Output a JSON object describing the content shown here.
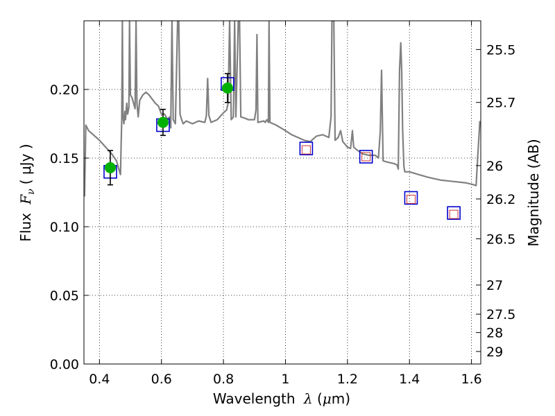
{
  "chart_data": {
    "type": "scatter",
    "xlabel_prefix": "Wavelength",
    "xlabel_symbol": "λ",
    "xlabel_unit_open": " (",
    "xlabel_unit_mu": "μ",
    "xlabel_unit_close": "m)",
    "ylabel_prefix": "Flux",
    "ylabel_symbol": "F",
    "ylabel_sub": "ν",
    "ylabel_unit": "( μJy )",
    "y2label": "Magnitude (AB)",
    "xlim": [
      0.35,
      1.63
    ],
    "ylim": [
      0.0,
      0.25
    ],
    "grid": true,
    "x_ticks": [
      0.4,
      0.6,
      0.8,
      1.0,
      1.2,
      1.4,
      1.6
    ],
    "x_tick_labels": [
      "0.4",
      "0.6",
      "0.8",
      "1",
      "1.2",
      "1.4",
      "1.6"
    ],
    "y_ticks": [
      0.0,
      0.05,
      0.1,
      0.15,
      0.2
    ],
    "y_tick_labels": [
      "0.00",
      "0.05",
      "0.10",
      "0.15",
      "0.20"
    ],
    "mag_ticks": [
      {
        "mag": 25.5,
        "label": "25.5"
      },
      {
        "mag": 25.7,
        "label": "25.7"
      },
      {
        "mag": 26.0,
        "label": "26"
      },
      {
        "mag": 26.2,
        "label": "26.2"
      },
      {
        "mag": 26.5,
        "label": "26.5"
      },
      {
        "mag": 27.0,
        "label": "27"
      },
      {
        "mag": 27.5,
        "label": "27.5"
      },
      {
        "mag": 28.0,
        "label": "28"
      },
      {
        "mag": 29.0,
        "label": "29"
      }
    ],
    "colors": {
      "sed": "#808080",
      "observed": "#00b000",
      "model": "#0000cc",
      "predicted": "#cc3333",
      "errorbar": "#000000"
    },
    "series": [
      {
        "kind": "line",
        "points": [
          [
            0.352,
            0.122
          ],
          [
            0.356,
            0.174
          ],
          [
            0.365,
            0.17
          ],
          [
            0.38,
            0.167
          ],
          [
            0.4,
            0.163
          ],
          [
            0.42,
            0.158
          ],
          [
            0.44,
            0.153
          ],
          [
            0.455,
            0.148
          ],
          [
            0.465,
            0.14
          ],
          [
            0.468,
            0.138
          ],
          [
            0.47,
            0.16
          ],
          [
            0.472,
            0.178
          ],
          [
            0.474,
            0.25
          ],
          [
            0.476,
            0.18
          ],
          [
            0.479,
            0.175
          ],
          [
            0.482,
            0.184
          ],
          [
            0.484,
            0.178
          ],
          [
            0.488,
            0.19
          ],
          [
            0.491,
            0.182
          ],
          [
            0.495,
            0.187
          ],
          [
            0.497,
            0.25
          ],
          [
            0.5,
            0.196
          ],
          [
            0.505,
            0.194
          ],
          [
            0.51,
            0.19
          ],
          [
            0.515,
            0.186
          ],
          [
            0.518,
            0.25
          ],
          [
            0.521,
            0.19
          ],
          [
            0.525,
            0.18
          ],
          [
            0.53,
            0.192
          ],
          [
            0.54,
            0.196
          ],
          [
            0.55,
            0.198
          ],
          [
            0.56,
            0.196
          ],
          [
            0.58,
            0.19
          ],
          [
            0.59,
            0.188
          ],
          [
            0.6,
            0.182
          ],
          [
            0.61,
            0.182
          ],
          [
            0.62,
            0.178
          ],
          [
            0.626,
            0.18
          ],
          [
            0.63,
            0.172
          ],
          [
            0.634,
            0.25
          ],
          [
            0.638,
            0.178
          ],
          [
            0.645,
            0.175
          ],
          [
            0.652,
            0.25
          ],
          [
            0.656,
            0.25
          ],
          [
            0.66,
            0.182
          ],
          [
            0.665,
            0.178
          ],
          [
            0.67,
            0.175
          ],
          [
            0.68,
            0.177
          ],
          [
            0.7,
            0.175
          ],
          [
            0.72,
            0.177
          ],
          [
            0.74,
            0.176
          ],
          [
            0.745,
            0.181
          ],
          [
            0.749,
            0.208
          ],
          [
            0.753,
            0.181
          ],
          [
            0.76,
            0.176
          ],
          [
            0.78,
            0.178
          ],
          [
            0.8,
            0.183
          ],
          [
            0.81,
            0.185
          ],
          [
            0.815,
            0.19
          ],
          [
            0.82,
            0.25
          ],
          [
            0.825,
            0.178
          ],
          [
            0.832,
            0.18
          ],
          [
            0.836,
            0.25
          ],
          [
            0.84,
            0.18
          ],
          [
            0.848,
            0.25
          ],
          [
            0.852,
            0.25
          ],
          [
            0.856,
            0.18
          ],
          [
            0.87,
            0.179
          ],
          [
            0.88,
            0.178
          ],
          [
            0.9,
            0.178
          ],
          [
            0.905,
            0.185
          ],
          [
            0.908,
            0.24
          ],
          [
            0.911,
            0.176
          ],
          [
            0.93,
            0.177
          ],
          [
            0.935,
            0.176
          ],
          [
            0.94,
            0.178
          ],
          [
            0.945,
            0.176
          ],
          [
            0.947,
            0.25
          ],
          [
            0.95,
            0.176
          ],
          [
            0.97,
            0.174
          ],
          [
            1.0,
            0.17
          ],
          [
            1.02,
            0.167
          ],
          [
            1.04,
            0.165
          ],
          [
            1.06,
            0.163
          ],
          [
            1.08,
            0.162
          ],
          [
            1.1,
            0.166
          ],
          [
            1.12,
            0.167
          ],
          [
            1.14,
            0.165
          ],
          [
            1.147,
            0.18
          ],
          [
            1.15,
            0.25
          ],
          [
            1.156,
            0.25
          ],
          [
            1.16,
            0.163
          ],
          [
            1.17,
            0.165
          ],
          [
            1.178,
            0.17
          ],
          [
            1.185,
            0.162
          ],
          [
            1.2,
            0.158
          ],
          [
            1.21,
            0.157
          ],
          [
            1.216,
            0.17
          ],
          [
            1.22,
            0.158
          ],
          [
            1.23,
            0.156
          ],
          [
            1.25,
            0.153
          ],
          [
            1.27,
            0.152
          ],
          [
            1.29,
            0.152
          ],
          [
            1.3,
            0.15
          ],
          [
            1.306,
            0.17
          ],
          [
            1.31,
            0.214
          ],
          [
            1.315,
            0.148
          ],
          [
            1.33,
            0.147
          ],
          [
            1.35,
            0.146
          ],
          [
            1.36,
            0.145
          ],
          [
            1.364,
            0.142
          ],
          [
            1.368,
            0.214
          ],
          [
            1.372,
            0.234
          ],
          [
            1.375,
            0.214
          ],
          [
            1.378,
            0.17
          ],
          [
            1.382,
            0.144
          ],
          [
            1.385,
            0.14
          ],
          [
            1.4,
            0.14
          ],
          [
            1.43,
            0.138
          ],
          [
            1.46,
            0.136
          ],
          [
            1.5,
            0.134
          ],
          [
            1.54,
            0.133
          ],
          [
            1.58,
            0.132
          ],
          [
            1.6,
            0.131
          ],
          [
            1.615,
            0.13
          ],
          [
            1.62,
            0.15
          ],
          [
            1.627,
            0.177
          ]
        ]
      },
      {
        "kind": "model_squares",
        "points": [
          [
            0.435,
            0.14
          ],
          [
            0.605,
            0.174
          ],
          [
            0.813,
            0.204
          ],
          [
            1.067,
            0.157
          ],
          [
            1.26,
            0.151
          ],
          [
            1.405,
            0.121
          ],
          [
            1.543,
            0.11
          ]
        ]
      },
      {
        "kind": "predicted_squares",
        "points": [
          [
            1.067,
            0.156
          ],
          [
            1.26,
            0.151
          ],
          [
            1.405,
            0.12
          ],
          [
            1.543,
            0.109
          ]
        ]
      },
      {
        "kind": "observed",
        "points": [
          {
            "x": 0.435,
            "y": 0.143,
            "err": 0.0125
          },
          {
            "x": 0.605,
            "y": 0.176,
            "err": 0.0095
          },
          {
            "x": 0.813,
            "y": 0.201,
            "err": 0.0105
          }
        ]
      }
    ]
  }
}
